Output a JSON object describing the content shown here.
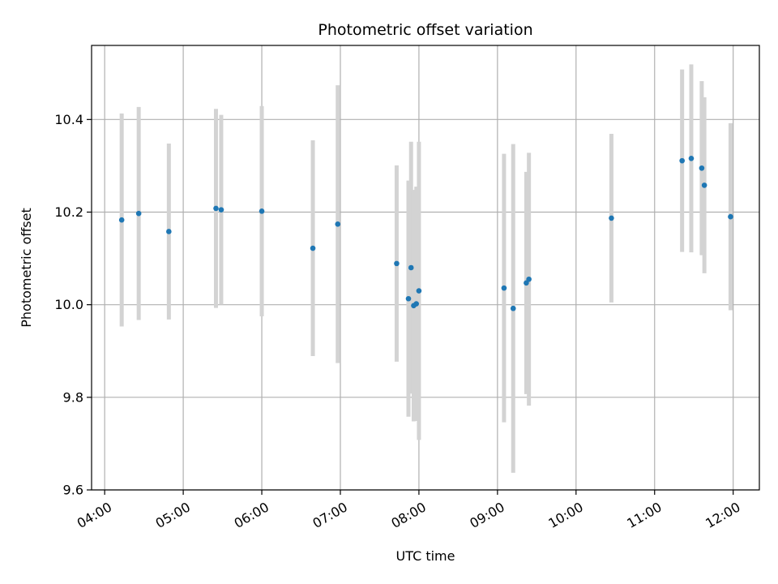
{
  "chart_data": {
    "type": "scatter",
    "title": "Photometric offset variation",
    "xlabel": "UTC time",
    "ylabel": "Photometric offset",
    "xlim": [
      "03:50",
      "12:20"
    ],
    "ylim": [
      9.6,
      10.56
    ],
    "x_ticks": [
      "04:00",
      "05:00",
      "06:00",
      "07:00",
      "08:00",
      "09:00",
      "10:00",
      "11:00",
      "12:00"
    ],
    "y_ticks": [
      9.6,
      9.8,
      10.0,
      10.2,
      10.4
    ],
    "grid": true,
    "colors": {
      "point": "#1f77b4",
      "errorbar": "#d3d3d3",
      "grid": "#b0b0b0"
    },
    "points": [
      {
        "time": "04:13",
        "y": 10.183,
        "err": 0.23
      },
      {
        "time": "04:26",
        "y": 10.197,
        "err": 0.23
      },
      {
        "time": "04:49",
        "y": 10.158,
        "err": 0.19
      },
      {
        "time": "05:25",
        "y": 10.208,
        "err": 0.215
      },
      {
        "time": "05:29",
        "y": 10.205,
        "err": 0.205
      },
      {
        "time": "06:00",
        "y": 10.202,
        "err": 0.227
      },
      {
        "time": "06:39",
        "y": 10.122,
        "err": 0.233
      },
      {
        "time": "06:58",
        "y": 10.174,
        "err": 0.3
      },
      {
        "time": "07:43",
        "y": 10.089,
        "err": 0.212
      },
      {
        "time": "07:52",
        "y": 10.013,
        "err": 0.255
      },
      {
        "time": "07:54",
        "y": 10.08,
        "err": 0.272
      },
      {
        "time": "07:56",
        "y": 9.998,
        "err": 0.25
      },
      {
        "time": "07:58",
        "y": 10.002,
        "err": 0.253
      },
      {
        "time": "08:00",
        "y": 10.03,
        "err": 0.322
      },
      {
        "time": "09:05",
        "y": 10.036,
        "err": 0.29
      },
      {
        "time": "09:12",
        "y": 9.992,
        "err": 0.355
      },
      {
        "time": "09:22",
        "y": 10.047,
        "err": 0.24
      },
      {
        "time": "09:24",
        "y": 10.055,
        "err": 0.273
      },
      {
        "time": "10:27",
        "y": 10.187,
        "err": 0.182
      },
      {
        "time": "11:21",
        "y": 10.311,
        "err": 0.197
      },
      {
        "time": "11:28",
        "y": 10.316,
        "err": 0.203
      },
      {
        "time": "11:36",
        "y": 10.295,
        "err": 0.188
      },
      {
        "time": "11:38",
        "y": 10.258,
        "err": 0.19
      },
      {
        "time": "11:58",
        "y": 10.19,
        "err": 0.202
      }
    ]
  }
}
